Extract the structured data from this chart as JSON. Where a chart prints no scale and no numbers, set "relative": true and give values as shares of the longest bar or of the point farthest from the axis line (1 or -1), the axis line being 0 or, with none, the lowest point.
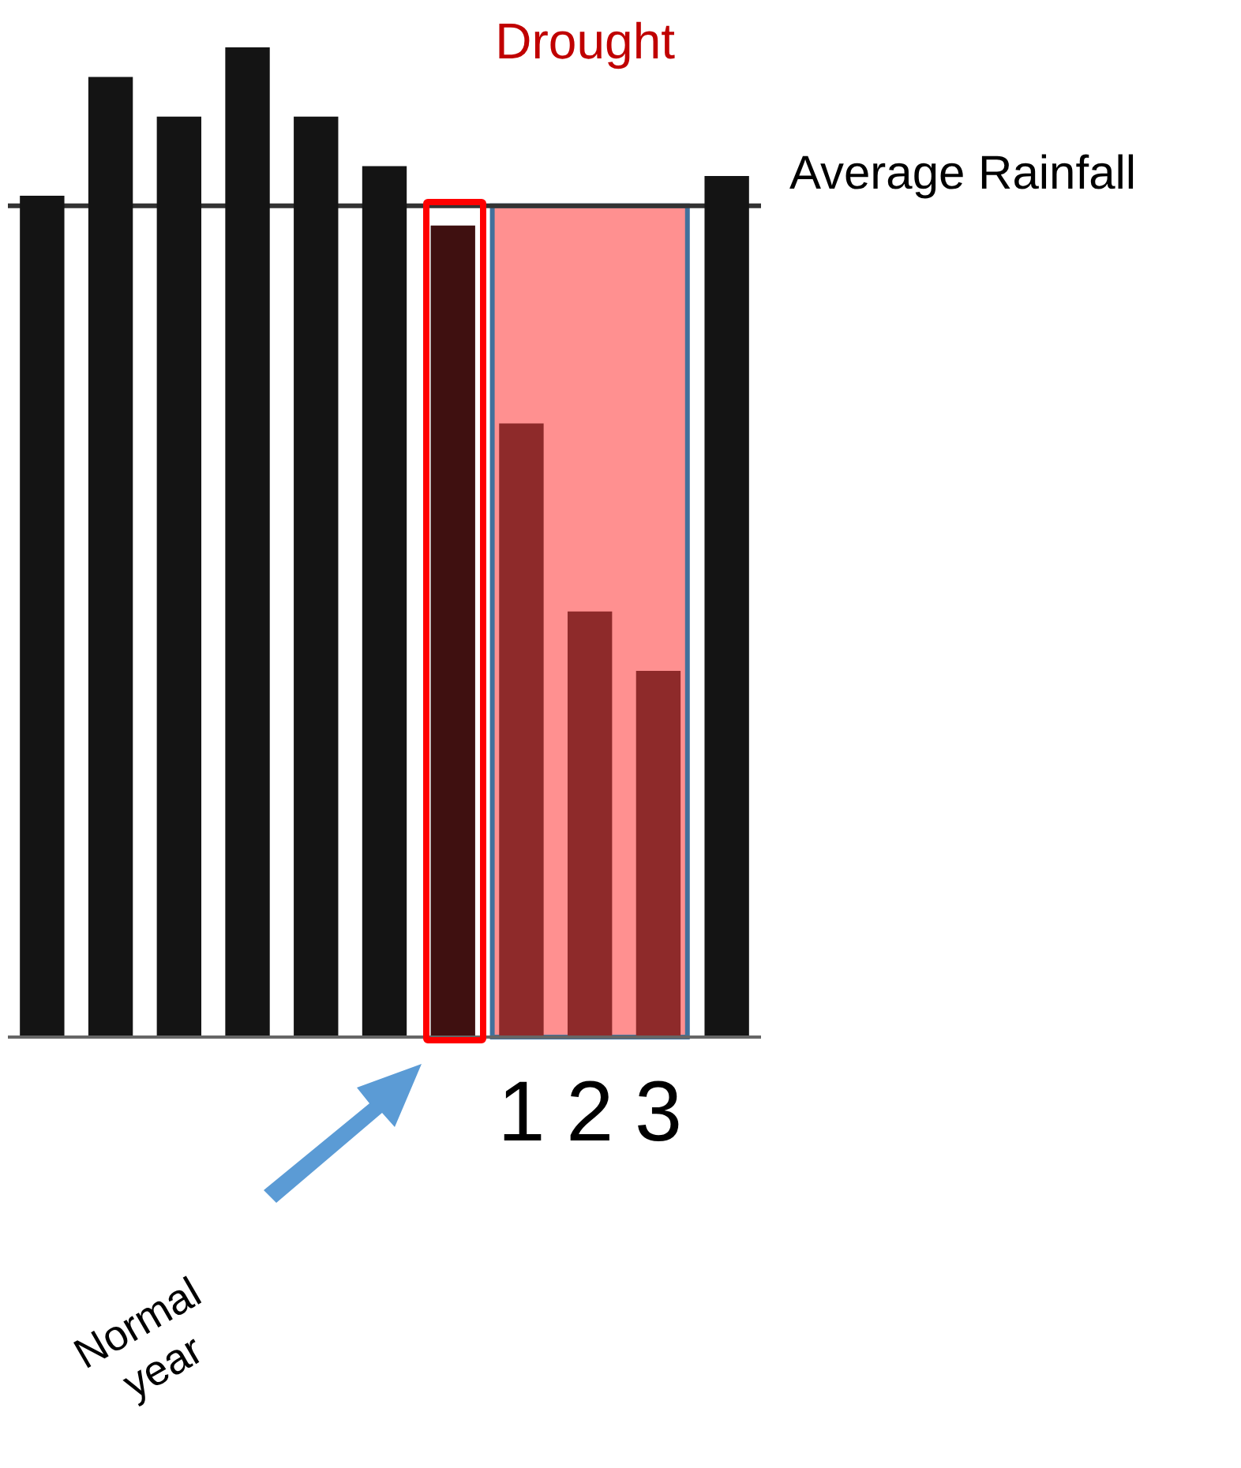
{
  "chart_data": {
    "type": "bar",
    "relative": true,
    "categories": [
      null,
      null,
      null,
      null,
      null,
      null,
      null,
      "1",
      "2",
      "3",
      null
    ],
    "values": [
      0.85,
      0.97,
      0.93,
      1,
      0.93,
      0.88,
      0.82,
      0.62,
      0.43,
      0.37,
      0.87
    ],
    "colors": [
      "#141414",
      "#141414",
      "#141414",
      "#141414",
      "#141414",
      "#141414",
      "#3f1010",
      "#8e2a2a",
      "#8e2a2a",
      "#8e2a2a",
      "#141414"
    ],
    "ref_lines": [
      {
        "axis": "y",
        "value": 0.84,
        "label": "Average Rainfall",
        "color": "#333333"
      }
    ],
    "bands": [
      {
        "axis": "x",
        "from": "1",
        "to": "3",
        "label": "Drought",
        "color": "#ff9090"
      }
    ],
    "annotations": [
      "Normal year"
    ],
    "grid": false,
    "legend": false
  }
}
